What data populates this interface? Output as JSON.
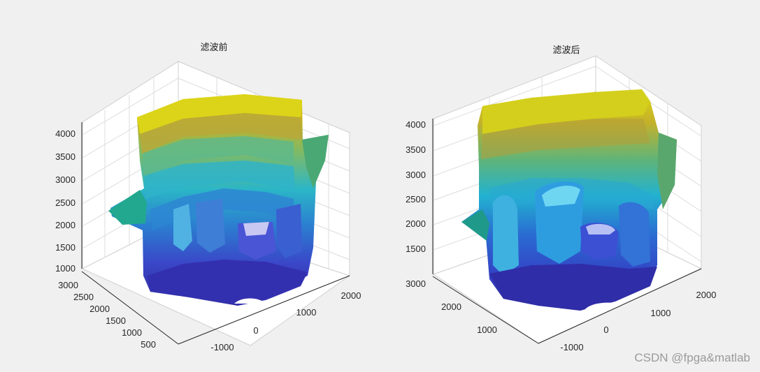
{
  "chart_data": [
    {
      "type": "surface",
      "title": "滤波前",
      "z_ticks": [
        "4000",
        "3500",
        "3000",
        "2500",
        "2000",
        "1500",
        "1000"
      ],
      "y_ticks": [
        "3000",
        "2500",
        "2000",
        "1500",
        "1000",
        "500"
      ],
      "x_ticks": [
        "-1000",
        "0",
        "1000",
        "2000"
      ],
      "zlim": [
        1000,
        4200
      ],
      "grid": true,
      "colormap": "parula"
    },
    {
      "type": "surface",
      "title": "滤波后",
      "z_ticks": [
        "4000",
        "3500",
        "3000",
        "2500",
        "2000",
        "1500"
      ],
      "y_ticks": [
        "3000",
        "2000",
        "1000"
      ],
      "x_ticks": [
        "-1000",
        "0",
        "1000",
        "2000"
      ],
      "zlim": [
        1000,
        4200
      ],
      "grid": true,
      "colormap": "parula"
    }
  ],
  "watermark": "CSDN @fpga&matlab",
  "colors": {
    "background": "#f0f0f0",
    "axes": "#ffffff",
    "grid": "#dcdcdc",
    "parula_low": "#352a87",
    "parula_mid": "#0fa5c9",
    "parula_high": "#f9fb0e"
  }
}
